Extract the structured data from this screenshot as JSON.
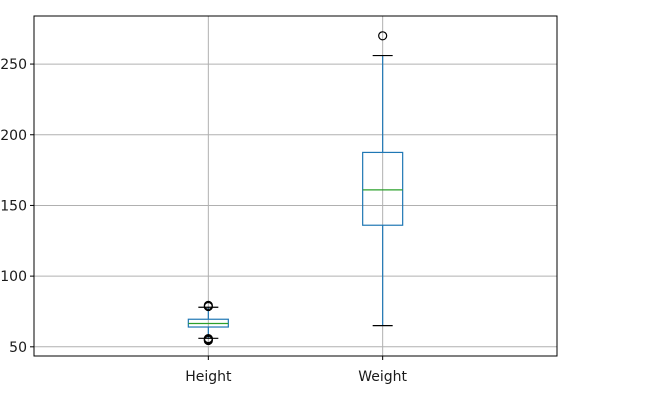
{
  "chart_data": {
    "type": "box",
    "title": "",
    "xlabel": "",
    "ylabel": "",
    "categories": [
      "Height",
      "Weight"
    ],
    "ylim": [
      43.5,
      284
    ],
    "yticks": [
      50,
      100,
      150,
      200,
      250
    ],
    "ytick_labels": [
      "50",
      "100",
      "150",
      "200",
      "250"
    ],
    "grid": true,
    "boxes": [
      {
        "name": "Height",
        "whisker_low": 56,
        "q1": 64,
        "median": 66.5,
        "q3": 69.5,
        "whisker_high": 78,
        "outliers": [
          54.5,
          55.2,
          55.8,
          78.5,
          79.3
        ]
      },
      {
        "name": "Weight",
        "whisker_low": 65,
        "q1": 136,
        "median": 161,
        "q3": 187.5,
        "whisker_high": 256,
        "outliers": [
          270
        ]
      }
    ],
    "colors": {
      "box": "#1f77b4",
      "median": "#2ca02c",
      "grid": "#b0b0b0",
      "axes": "#000000",
      "outlier": "#000000"
    }
  }
}
